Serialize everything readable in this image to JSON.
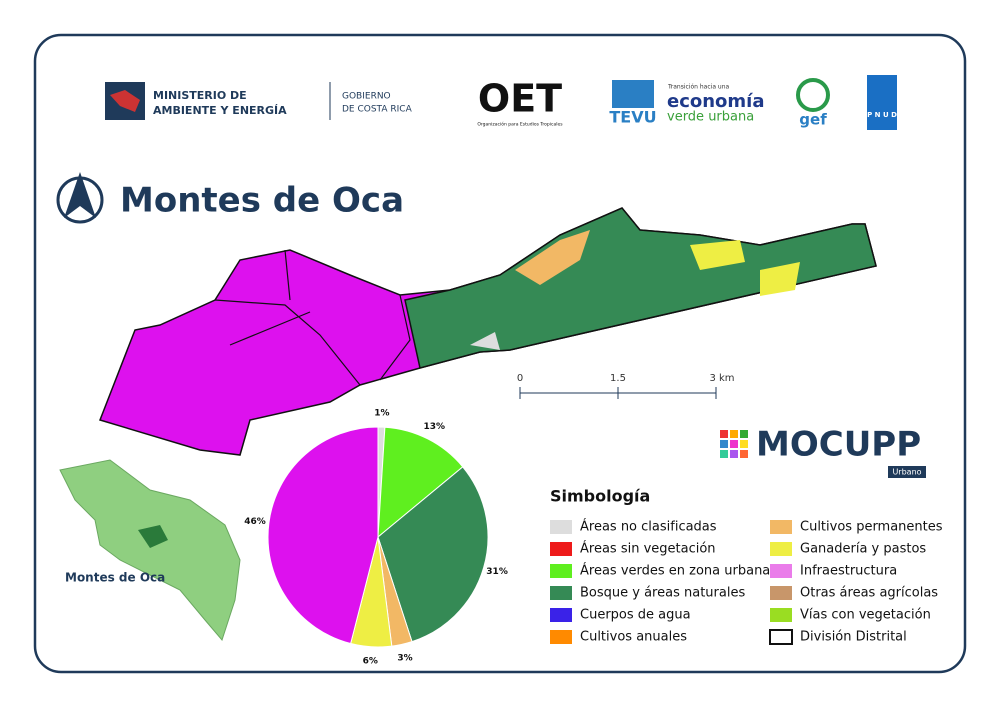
{
  "header": {
    "ministry_line1": "MINISTERIO DE",
    "ministry_line2": "AMBIENTE Y ENERGÍA",
    "government_line1": "GOBIERNO",
    "government_line2": "DE COSTA RICA",
    "oet_logo": "OET",
    "oet_name": "Organización para Estudios Tropicales",
    "tevu": "TEVU",
    "tevu_line1": "Transición hacia una",
    "tevu_line2": "economía",
    "tevu_line3": "verde urbana",
    "gef": "gef",
    "pnud": "P N U D"
  },
  "title": "Montes de Oca",
  "scale_bar": {
    "labels": [
      "0",
      "1.5",
      "3 km"
    ]
  },
  "inset_label": "Montes de Oca",
  "brand": {
    "name": "MOCUPP",
    "tag": "Urbano"
  },
  "legend": {
    "title": "Simbología",
    "items": [
      {
        "label": "Áreas no clasificadas",
        "color": "#dddddd"
      },
      {
        "label": "Áreas sin vegetación",
        "color": "#ee1a1a"
      },
      {
        "label": "Áreas verdes en zona urbana",
        "color": "#5fef1f"
      },
      {
        "label": "Bosque y áreas naturales",
        "color": "#358a55"
      },
      {
        "label": "Cuerpos de agua",
        "color": "#3a22e8"
      },
      {
        "label": "Cultivos anuales",
        "color": "#ff8a00"
      },
      {
        "label": "Cultivos permanentes",
        "color": "#f2b865"
      },
      {
        "label": "Ganadería y pastos",
        "color": "#eeee44"
      },
      {
        "label": "Infraestructura",
        "color": "#ea7cea"
      },
      {
        "label": "Otras áreas agrícolas",
        "color": "#c8966a"
      },
      {
        "label": "Vías con vegetación",
        "color": "#9add22"
      },
      {
        "label": "División Distrital",
        "color": "#ffffff"
      }
    ]
  },
  "chart_data": {
    "type": "pie",
    "values": [
      1,
      13,
      31,
      3,
      6,
      46
    ],
    "value_labels": [
      "1%",
      "13%",
      "31%",
      "3%",
      "6%",
      "46%"
    ],
    "colors": [
      "#dddddd",
      "#5fef1f",
      "#358a55",
      "#f2b865",
      "#eeee44",
      "#dd11ee"
    ]
  }
}
